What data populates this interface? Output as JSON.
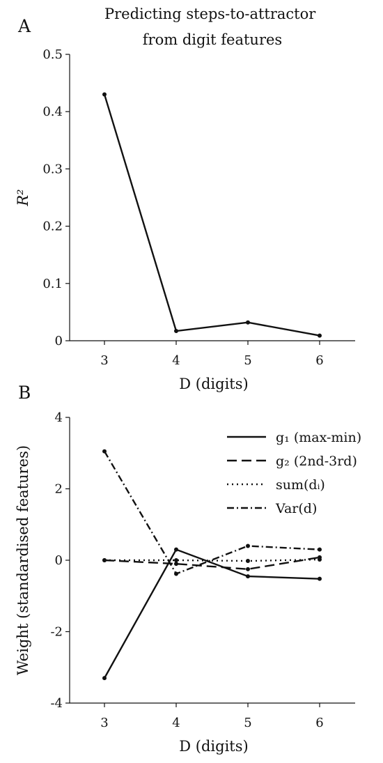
{
  "panel_a_letter": "A",
  "panel_b_letter": "B",
  "chart_data": [
    {
      "type": "line",
      "title": "Predicting steps-to-attractor\nfrom digit features",
      "xlabel": "D (digits)",
      "ylabel": "R²",
      "categories": [
        3,
        4,
        5,
        6
      ],
      "ylim": [
        0,
        0.5
      ],
      "yticks": [
        "0",
        "0.1",
        "0.2",
        "0.3",
        "0.4",
        "0.5"
      ],
      "grid": false,
      "series": [
        {
          "values": [
            0.43,
            0.017,
            0.032,
            0.009
          ],
          "color": "#111111",
          "style": "solid"
        }
      ]
    },
    {
      "type": "line",
      "xlabel": "D (digits)",
      "ylabel": "Weight (standardised features)",
      "categories": [
        3,
        4,
        5,
        6
      ],
      "ylim": [
        -4,
        4
      ],
      "yticks": [
        "-4",
        "-2",
        "0",
        "2",
        "4"
      ],
      "grid": false,
      "legend": "top-right",
      "series": [
        {
          "name": "g₁ (max-min)",
          "values": [
            -3.3,
            0.3,
            -0.45,
            -0.52
          ],
          "color": "#111111",
          "style": "solid"
        },
        {
          "name": "g₂ (2nd-3rd)",
          "values": [
            0.0,
            -0.1,
            -0.25,
            0.08
          ],
          "color": "#111111",
          "style": "dashed"
        },
        {
          "name": "sum(dᵢ)",
          "values": [
            0.0,
            0.0,
            -0.02,
            0.02
          ],
          "color": "#111111",
          "style": "dotted"
        },
        {
          "name": "Var(d)",
          "values": [
            3.05,
            -0.38,
            0.4,
            0.3
          ],
          "color": "#111111",
          "style": "dashdot"
        }
      ]
    }
  ]
}
